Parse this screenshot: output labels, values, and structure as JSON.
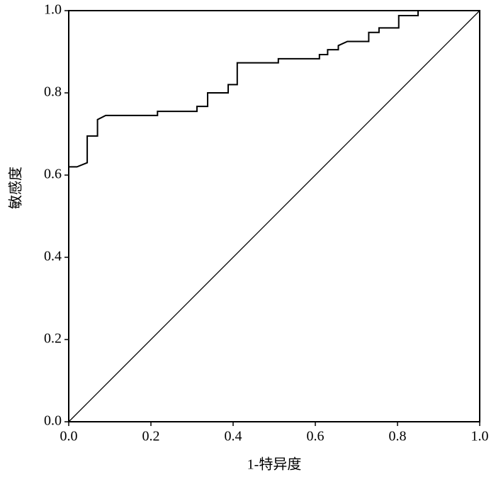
{
  "chart_data": {
    "type": "line",
    "xlabel": "1-特异度",
    "ylabel": "敏感度",
    "xlim": [
      0,
      1
    ],
    "ylim": [
      0,
      1
    ],
    "xticks": [
      {
        "value": 0,
        "label": "0.0"
      },
      0.2,
      0.4,
      0.6,
      0.8,
      {
        "value": 1,
        "label": "1.0"
      }
    ],
    "yticks": [
      {
        "value": 0,
        "label": "0.0"
      },
      0.2,
      0.4,
      0.6,
      0.8,
      {
        "value": 1,
        "label": "1.0"
      }
    ],
    "series": [
      {
        "color": "#000000",
        "x": [
          0,
          0.02,
          0.045,
          0.045,
          0.07,
          0.07,
          0.09,
          0.216,
          0.216,
          0.312,
          0.312,
          0.338,
          0.338,
          0.388,
          0.388,
          0.41,
          0.41,
          0.51,
          0.51,
          0.61,
          0.61,
          0.63,
          0.63,
          0.656,
          0.656,
          0.678,
          0.73,
          0.73,
          0.755,
          0.755,
          0.803,
          0.803,
          0.85,
          0.85,
          1.0
        ],
        "values": [
          0.62,
          0.62,
          0.63,
          0.695,
          0.695,
          0.735,
          0.745,
          0.745,
          0.755,
          0.755,
          0.767,
          0.767,
          0.8,
          0.8,
          0.82,
          0.82,
          0.873,
          0.873,
          0.883,
          0.883,
          0.893,
          0.893,
          0.905,
          0.905,
          0.915,
          0.925,
          0.925,
          0.947,
          0.947,
          0.958,
          0.958,
          0.988,
          0.988,
          1.0,
          1.0
        ]
      },
      {
        "color": "#000000",
        "x": [
          0,
          1
        ],
        "values": [
          0,
          1
        ]
      }
    ]
  }
}
